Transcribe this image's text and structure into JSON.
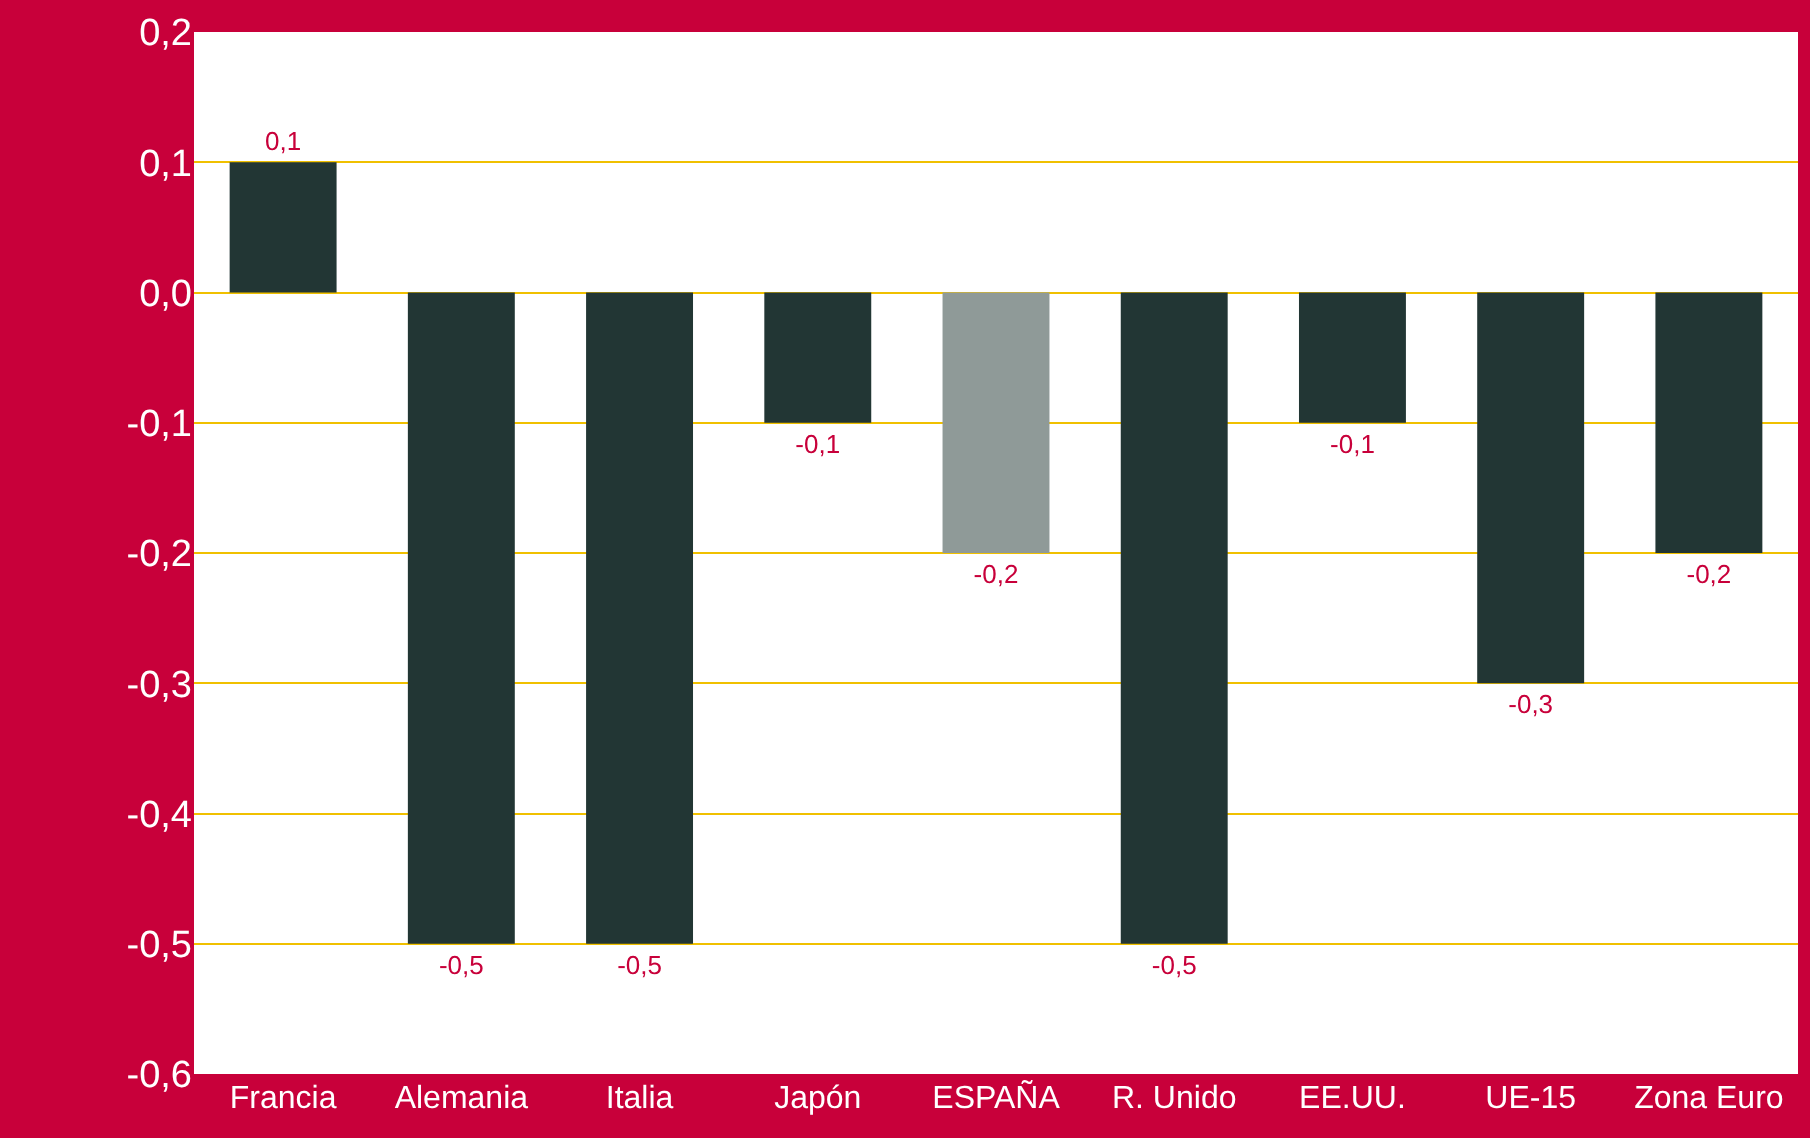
{
  "chart_data": {
    "type": "bar",
    "categories": [
      "Francia",
      "Alemania",
      "Italia",
      "Japón",
      "ESPAÑA",
      "R. Unido",
      "EE.UU.",
      "UE-15",
      "Zona Euro"
    ],
    "values": [
      0.1,
      -0.5,
      -0.5,
      -0.1,
      -0.2,
      -0.5,
      -0.1,
      -0.3,
      -0.2
    ],
    "colors": [
      "#223634",
      "#223634",
      "#223634",
      "#223634",
      "#8f9a98",
      "#223634",
      "#223634",
      "#223634",
      "#223634"
    ],
    "value_labels": [
      "0,1",
      "-0,5",
      "-0,5",
      "-0,1",
      "-0,2",
      "-0,5",
      "-0,1",
      "-0,3",
      "-0,2"
    ],
    "ylim": [
      -0.6,
      0.2
    ],
    "yticks": [
      {
        "value": 0.2,
        "label": "0,2"
      },
      {
        "value": 0.1,
        "label": "0,1"
      },
      {
        "value": 0.0,
        "label": "0,0"
      },
      {
        "value": -0.1,
        "label": "-0,1"
      },
      {
        "value": -0.2,
        "label": "-0,2"
      },
      {
        "value": -0.3,
        "label": "-0,3"
      },
      {
        "value": -0.4,
        "label": "-0,4"
      },
      {
        "value": -0.5,
        "label": "-0,5"
      },
      {
        "value": -0.6,
        "label": "-0,6"
      }
    ],
    "grid": "y"
  }
}
